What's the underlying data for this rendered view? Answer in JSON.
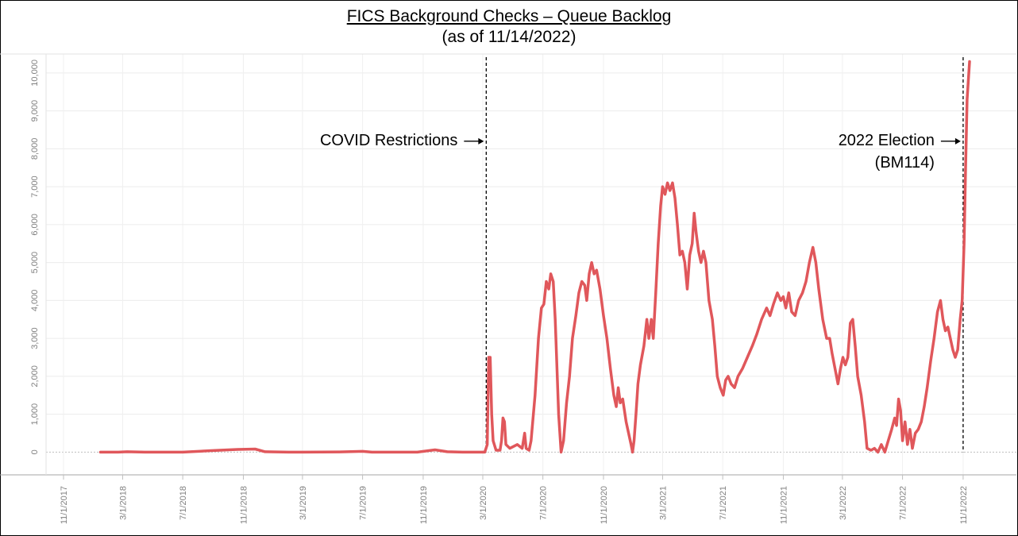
{
  "chart_data": {
    "type": "line",
    "title": "FICS Background Checks – Queue Backlog",
    "subtitle": "(as of 11/14/2022)",
    "xlabel": "",
    "ylabel": "",
    "x_range": [
      "2017-11-01",
      "2022-12-05"
    ],
    "ylim": [
      -600,
      10500
    ],
    "yticks": [
      0,
      1000,
      2000,
      3000,
      4000,
      5000,
      6000,
      7000,
      8000,
      9000,
      10000
    ],
    "ytick_labels": [
      "0",
      "1,000",
      "2,000",
      "3,000",
      "4,000",
      "5,000",
      "6,000",
      "7,000",
      "8,000",
      "9,000",
      "10,000"
    ],
    "xtick_dates": [
      "2017-11-01",
      "2018-03-01",
      "2018-07-01",
      "2018-11-01",
      "2019-03-01",
      "2019-07-01",
      "2019-11-01",
      "2020-03-01",
      "2020-07-01",
      "2020-11-01",
      "2021-03-01",
      "2021-07-01",
      "2021-11-01",
      "2022-03-01",
      "2022-07-01",
      "2022-11-01"
    ],
    "xtick_labels": [
      "11/1/2017",
      "3/1/2018",
      "7/1/2018",
      "11/1/2018",
      "3/1/2019",
      "7/1/2019",
      "11/1/2019",
      "3/1/2020",
      "7/1/2020",
      "11/1/2020",
      "3/1/2021",
      "7/1/2021",
      "11/1/2021",
      "3/1/2022",
      "7/1/2022",
      "11/1/2022"
    ],
    "grid": true,
    "line_color": "#E0575B",
    "series": [
      {
        "name": "",
        "points": [
          [
            "2018-01-15",
            0
          ],
          [
            "2018-02-20",
            0
          ],
          [
            "2018-03-10",
            10
          ],
          [
            "2018-04-15",
            0
          ],
          [
            "2018-07-01",
            0
          ],
          [
            "2018-09-01",
            40
          ],
          [
            "2018-10-20",
            70
          ],
          [
            "2018-11-25",
            80
          ],
          [
            "2018-12-15",
            10
          ],
          [
            "2019-02-01",
            0
          ],
          [
            "2019-03-01",
            0
          ],
          [
            "2019-05-15",
            5
          ],
          [
            "2019-07-01",
            20
          ],
          [
            "2019-07-20",
            0
          ],
          [
            "2019-09-15",
            0
          ],
          [
            "2019-10-20",
            0
          ],
          [
            "2019-11-25",
            60
          ],
          [
            "2019-12-20",
            10
          ],
          [
            "2020-01-20",
            0
          ],
          [
            "2020-02-28",
            0
          ],
          [
            "2020-03-05",
            0
          ],
          [
            "2020-03-10",
            200
          ],
          [
            "2020-03-13",
            2500
          ],
          [
            "2020-03-16",
            2500
          ],
          [
            "2020-03-19",
            1000
          ],
          [
            "2020-03-22",
            300
          ],
          [
            "2020-03-28",
            50
          ],
          [
            "2020-04-05",
            50
          ],
          [
            "2020-04-08",
            300
          ],
          [
            "2020-04-11",
            900
          ],
          [
            "2020-04-14",
            800
          ],
          [
            "2020-04-17",
            200
          ],
          [
            "2020-04-25",
            100
          ],
          [
            "2020-05-10",
            200
          ],
          [
            "2020-05-20",
            100
          ],
          [
            "2020-05-25",
            500
          ],
          [
            "2020-05-28",
            100
          ],
          [
            "2020-06-03",
            50
          ],
          [
            "2020-06-07",
            300
          ],
          [
            "2020-06-15",
            1500
          ],
          [
            "2020-06-22",
            3000
          ],
          [
            "2020-06-28",
            3800
          ],
          [
            "2020-07-03",
            3900
          ],
          [
            "2020-07-08",
            4500
          ],
          [
            "2020-07-13",
            4300
          ],
          [
            "2020-07-17",
            4700
          ],
          [
            "2020-07-22",
            4500
          ],
          [
            "2020-07-26",
            3500
          ],
          [
            "2020-08-02",
            1000
          ],
          [
            "2020-08-07",
            0
          ],
          [
            "2020-08-12",
            300
          ],
          [
            "2020-08-18",
            1300
          ],
          [
            "2020-08-24",
            2000
          ],
          [
            "2020-08-30",
            3000
          ],
          [
            "2020-09-06",
            3600
          ],
          [
            "2020-09-12",
            4200
          ],
          [
            "2020-09-18",
            4500
          ],
          [
            "2020-09-24",
            4400
          ],
          [
            "2020-09-28",
            4000
          ],
          [
            "2020-10-03",
            4700
          ],
          [
            "2020-10-08",
            5000
          ],
          [
            "2020-10-13",
            4700
          ],
          [
            "2020-10-18",
            4800
          ],
          [
            "2020-10-25",
            4300
          ],
          [
            "2020-11-01",
            3600
          ],
          [
            "2020-11-08",
            3000
          ],
          [
            "2020-11-15",
            2200
          ],
          [
            "2020-11-22",
            1500
          ],
          [
            "2020-11-27",
            1200
          ],
          [
            "2020-12-01",
            1700
          ],
          [
            "2020-12-05",
            1300
          ],
          [
            "2020-12-10",
            1400
          ],
          [
            "2020-12-17",
            800
          ],
          [
            "2020-12-22",
            500
          ],
          [
            "2020-12-27",
            200
          ],
          [
            "2020-12-30",
            0
          ],
          [
            "2021-01-02",
            300
          ],
          [
            "2021-01-06",
            1000
          ],
          [
            "2021-01-10",
            1800
          ],
          [
            "2021-01-15",
            2300
          ],
          [
            "2021-01-22",
            2800
          ],
          [
            "2021-01-28",
            3500
          ],
          [
            "2021-02-01",
            3000
          ],
          [
            "2021-02-06",
            3500
          ],
          [
            "2021-02-10",
            3000
          ],
          [
            "2021-02-15",
            4200
          ],
          [
            "2021-02-20",
            5500
          ],
          [
            "2021-02-25",
            6500
          ],
          [
            "2021-03-01",
            7000
          ],
          [
            "2021-03-06",
            6800
          ],
          [
            "2021-03-11",
            7100
          ],
          [
            "2021-03-16",
            6900
          ],
          [
            "2021-03-21",
            7100
          ],
          [
            "2021-03-26",
            6700
          ],
          [
            "2021-03-31",
            6000
          ],
          [
            "2021-04-05",
            5200
          ],
          [
            "2021-04-10",
            5300
          ],
          [
            "2021-04-15",
            5000
          ],
          [
            "2021-04-20",
            4300
          ],
          [
            "2021-04-25",
            5200
          ],
          [
            "2021-04-30",
            5500
          ],
          [
            "2021-05-04",
            6300
          ],
          [
            "2021-05-08",
            5800
          ],
          [
            "2021-05-13",
            5300
          ],
          [
            "2021-05-18",
            5000
          ],
          [
            "2021-05-23",
            5300
          ],
          [
            "2021-05-28",
            5000
          ],
          [
            "2021-06-03",
            4000
          ],
          [
            "2021-06-10",
            3500
          ],
          [
            "2021-06-15",
            2800
          ],
          [
            "2021-06-20",
            2000
          ],
          [
            "2021-06-26",
            1700
          ],
          [
            "2021-07-02",
            1500
          ],
          [
            "2021-07-07",
            1900
          ],
          [
            "2021-07-12",
            2000
          ],
          [
            "2021-07-18",
            1800
          ],
          [
            "2021-07-25",
            1700
          ],
          [
            "2021-08-01",
            2000
          ],
          [
            "2021-08-10",
            2200
          ],
          [
            "2021-08-20",
            2500
          ],
          [
            "2021-08-30",
            2800
          ],
          [
            "2021-09-08",
            3100
          ],
          [
            "2021-09-18",
            3500
          ],
          [
            "2021-09-28",
            3800
          ],
          [
            "2021-10-05",
            3600
          ],
          [
            "2021-10-12",
            3900
          ],
          [
            "2021-10-20",
            4200
          ],
          [
            "2021-10-27",
            4000
          ],
          [
            "2021-11-01",
            4100
          ],
          [
            "2021-11-06",
            3800
          ],
          [
            "2021-11-12",
            4200
          ],
          [
            "2021-11-18",
            3700
          ],
          [
            "2021-11-25",
            3600
          ],
          [
            "2021-12-02",
            4000
          ],
          [
            "2021-12-10",
            4200
          ],
          [
            "2021-12-17",
            4500
          ],
          [
            "2021-12-24",
            5000
          ],
          [
            "2021-12-31",
            5400
          ],
          [
            "2022-01-06",
            5000
          ],
          [
            "2022-01-12",
            4300
          ],
          [
            "2022-01-20",
            3500
          ],
          [
            "2022-01-28",
            3000
          ],
          [
            "2022-02-03",
            3000
          ],
          [
            "2022-02-08",
            2600
          ],
          [
            "2022-02-14",
            2200
          ],
          [
            "2022-02-20",
            1800
          ],
          [
            "2022-02-25",
            2200
          ],
          [
            "2022-03-02",
            2500
          ],
          [
            "2022-03-07",
            2300
          ],
          [
            "2022-03-12",
            2500
          ],
          [
            "2022-03-17",
            3400
          ],
          [
            "2022-03-22",
            3500
          ],
          [
            "2022-03-27",
            2800
          ],
          [
            "2022-04-01",
            2000
          ],
          [
            "2022-04-08",
            1500
          ],
          [
            "2022-04-15",
            800
          ],
          [
            "2022-04-20",
            100
          ],
          [
            "2022-04-28",
            50
          ],
          [
            "2022-05-05",
            100
          ],
          [
            "2022-05-12",
            0
          ],
          [
            "2022-05-19",
            200
          ],
          [
            "2022-05-26",
            0
          ],
          [
            "2022-06-02",
            300
          ],
          [
            "2022-06-09",
            600
          ],
          [
            "2022-06-15",
            900
          ],
          [
            "2022-06-19",
            700
          ],
          [
            "2022-06-23",
            1400
          ],
          [
            "2022-06-27",
            1100
          ],
          [
            "2022-07-01",
            300
          ],
          [
            "2022-07-06",
            800
          ],
          [
            "2022-07-11",
            200
          ],
          [
            "2022-07-16",
            600
          ],
          [
            "2022-07-21",
            100
          ],
          [
            "2022-07-27",
            500
          ],
          [
            "2022-08-02",
            600
          ],
          [
            "2022-08-08",
            800
          ],
          [
            "2022-08-14",
            1200
          ],
          [
            "2022-08-20",
            1700
          ],
          [
            "2022-08-27",
            2400
          ],
          [
            "2022-09-03",
            3000
          ],
          [
            "2022-09-10",
            3700
          ],
          [
            "2022-09-16",
            4000
          ],
          [
            "2022-09-21",
            3500
          ],
          [
            "2022-09-26",
            3200
          ],
          [
            "2022-10-01",
            3300
          ],
          [
            "2022-10-06",
            3000
          ],
          [
            "2022-10-11",
            2700
          ],
          [
            "2022-10-16",
            2500
          ],
          [
            "2022-10-21",
            2700
          ],
          [
            "2022-10-26",
            3500
          ],
          [
            "2022-10-30",
            4000
          ],
          [
            "2022-11-03",
            5500
          ],
          [
            "2022-11-06",
            7500
          ],
          [
            "2022-11-09",
            9300
          ],
          [
            "2022-11-14",
            10300
          ]
        ]
      }
    ],
    "annotations": [
      {
        "date": "2020-03-08",
        "label_lines": [
          "COVID Restrictions"
        ],
        "label_side": "left",
        "label_value": 8200
      },
      {
        "date": "2022-11-01",
        "label_lines": [
          "2022 Election",
          "(BM114)"
        ],
        "label_side": "left",
        "label_value": 8200
      }
    ]
  }
}
